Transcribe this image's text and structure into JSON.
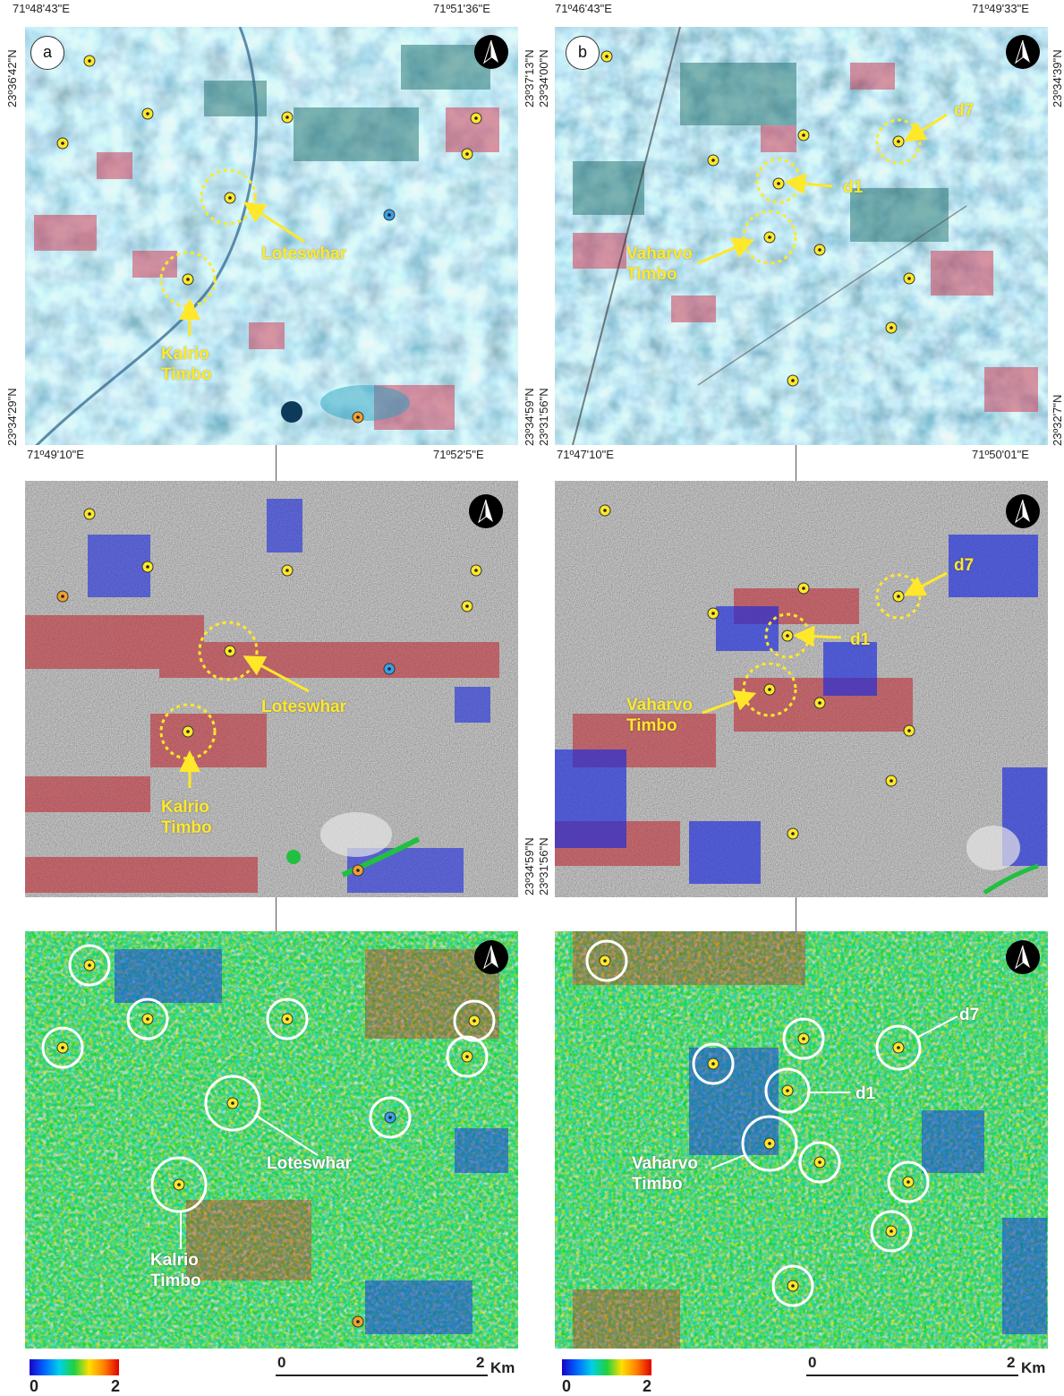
{
  "panels": {
    "a": {
      "label": "a",
      "top_left_lon": "71º48'43\"E",
      "top_right_lon": "71º51'36\"E",
      "bottom_left_lon": "71º49'10\"E",
      "bottom_right_lon": "71º52'5\"E",
      "top_left_lat": "23º36'42\"N",
      "bottom_left_lat": "23º34'29\"N",
      "right_top_lat": "23º37'13\"N",
      "right_bottom_lat": "23º34'59\"N",
      "right_bottom_lat_mid": "23º34'59\"N",
      "site_loteswhar": "Loteswhar",
      "site_kalrio": "Kalrio\nTimbo"
    },
    "b": {
      "label": "b",
      "top_left_lon": "71º46'43\"E",
      "top_right_lon": "71º49'33\"E",
      "bottom_left_lon": "71º47'10\"E",
      "bottom_right_lon": "71º50'01\"E",
      "left_top_lat": "23º34'00\"N",
      "left_bottom_lat": "23º31'56\"N",
      "left_bottom_lat_mid": "23º31'56\"N",
      "right_top_lat": "23º34'39\"N",
      "right_bottom_lat": "23º32'7\"N",
      "site_d7": "d7",
      "site_d1": "d1",
      "site_vaharvo": "Vaharvo\nTimbo"
    }
  },
  "legend": {
    "colorbar_min": "0",
    "colorbar_max": "2",
    "scale_start": "0",
    "scale_end": "2",
    "scale_unit": "Km"
  },
  "colors": {
    "marker_yellow": "#ffe82a",
    "circle_white": "#ffffff",
    "coherence_low": "#1a00c8",
    "coherence_high": "#e00000"
  },
  "icons": {
    "north_arrow": "north-arrow-icon",
    "site_marker": "site-marker-icon"
  }
}
